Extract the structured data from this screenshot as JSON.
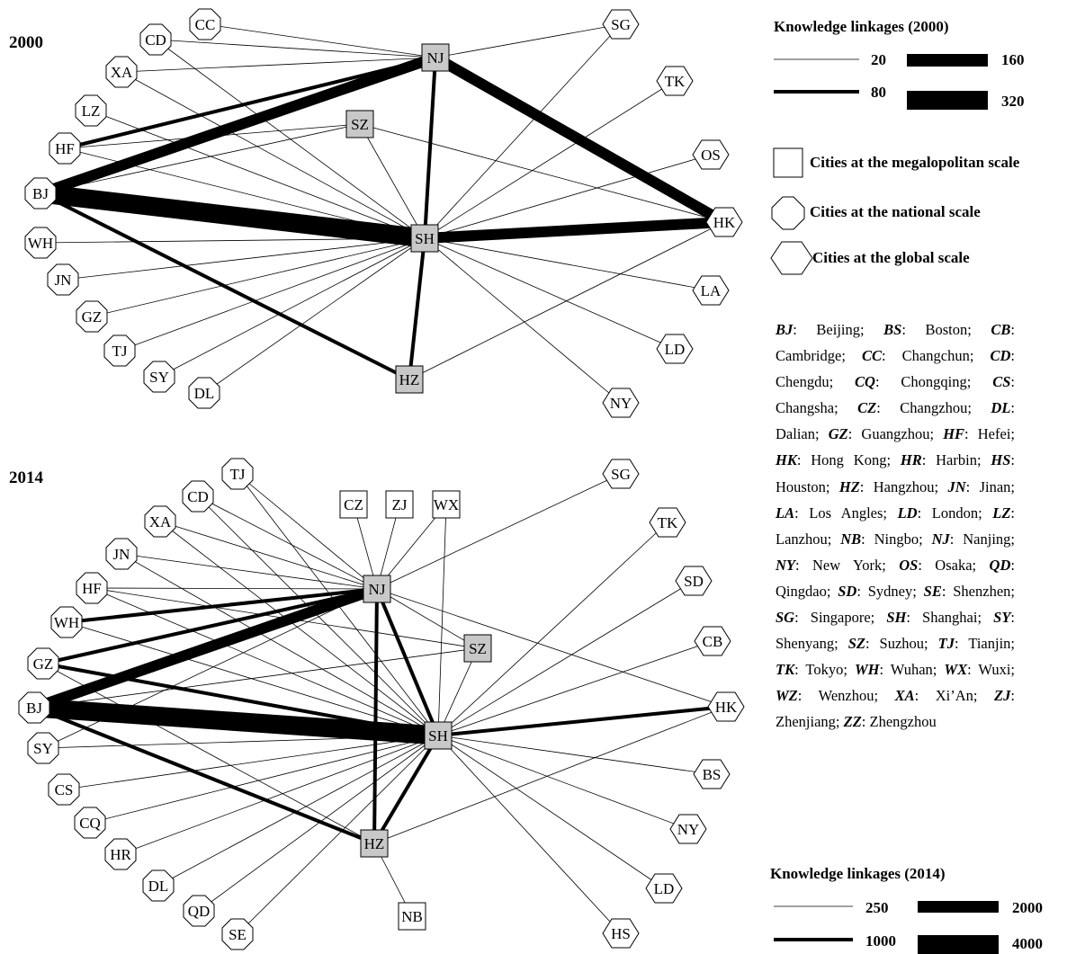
{
  "panels": [
    {
      "year_label": "2000",
      "cities": {
        "NJ": "megalopolitan",
        "SZ": "megalopolitan",
        "SH": "megalopolitan",
        "HZ": "megalopolitan",
        "CC": "national",
        "CD": "national",
        "XA": "national",
        "LZ": "national",
        "HF": "national",
        "BJ": "national",
        "WH": "national",
        "JN": "national",
        "GZ": "national",
        "TJ": "national",
        "SY": "national",
        "DL": "national",
        "SG": "global",
        "TK": "global",
        "OS": "global",
        "HK": "global",
        "LA": "global",
        "LD": "global",
        "NY": "global"
      },
      "links": [
        [
          "BJ",
          "SH",
          320
        ],
        [
          "BJ",
          "NJ",
          160
        ],
        [
          "NJ",
          "HK",
          160
        ],
        [
          "SH",
          "HK",
          160
        ],
        [
          "BJ",
          "HZ",
          80
        ],
        [
          "HF",
          "NJ",
          80
        ],
        [
          "NJ",
          "SH",
          80
        ],
        [
          "SH",
          "HZ",
          80
        ],
        [
          "CC",
          "NJ",
          20
        ],
        [
          "CD",
          "NJ",
          20
        ],
        [
          "XA",
          "NJ",
          20
        ],
        [
          "BJ",
          "SZ",
          20
        ],
        [
          "HF",
          "SZ",
          20
        ],
        [
          "SZ",
          "SH",
          20
        ],
        [
          "SZ",
          "HK",
          20
        ],
        [
          "CD",
          "SH",
          20
        ],
        [
          "XA",
          "SH",
          20
        ],
        [
          "LZ",
          "SH",
          20
        ],
        [
          "HF",
          "SH",
          20
        ],
        [
          "WH",
          "SH",
          20
        ],
        [
          "JN",
          "SH",
          20
        ],
        [
          "GZ",
          "SH",
          20
        ],
        [
          "TJ",
          "SH",
          20
        ],
        [
          "SY",
          "SH",
          20
        ],
        [
          "DL",
          "SH",
          20
        ],
        [
          "SG",
          "NJ",
          20
        ],
        [
          "SG",
          "SH",
          20
        ],
        [
          "TK",
          "SH",
          20
        ],
        [
          "OS",
          "SH",
          20
        ],
        [
          "LA",
          "SH",
          20
        ],
        [
          "LD",
          "SH",
          20
        ],
        [
          "NY",
          "SH",
          20
        ],
        [
          "HZ",
          "HK",
          20
        ]
      ]
    },
    {
      "year_label": "2014",
      "cities": {
        "NJ": "megalopolitan",
        "SZ": "megalopolitan",
        "SH": "megalopolitan",
        "HZ": "megalopolitan",
        "CZ": "megalopolitan",
        "ZJ": "megalopolitan",
        "WX": "megalopolitan",
        "NB": "megalopolitan",
        "TJ": "national",
        "CD": "national",
        "XA": "national",
        "JN": "national",
        "HF": "national",
        "WH": "national",
        "GZ": "national",
        "BJ": "national",
        "SY": "national",
        "CS": "national",
        "CQ": "national",
        "HR": "national",
        "DL": "national",
        "QD": "national",
        "SE": "national",
        "SG": "global",
        "TK": "global",
        "SD": "global",
        "CB": "global",
        "HK": "global",
        "BS": "global",
        "NY": "global",
        "LD": "global",
        "HS": "global"
      },
      "links": [
        [
          "BJ",
          "SH",
          4000
        ],
        [
          "BJ",
          "NJ",
          2000
        ],
        [
          "BJ",
          "HZ",
          1000
        ],
        [
          "NJ",
          "SH",
          1000
        ],
        [
          "SH",
          "HZ",
          1000
        ],
        [
          "SH",
          "HK",
          1000
        ],
        [
          "GZ",
          "SH",
          1000
        ],
        [
          "GZ",
          "NJ",
          1000
        ],
        [
          "NJ",
          "HZ",
          1000
        ],
        [
          "WH",
          "NJ",
          1000
        ],
        [
          "TJ",
          "NJ",
          250
        ],
        [
          "TJ",
          "SH",
          250
        ],
        [
          "CD",
          "NJ",
          250
        ],
        [
          "CD",
          "SH",
          250
        ],
        [
          "XA",
          "NJ",
          250
        ],
        [
          "XA",
          "SH",
          250
        ],
        [
          "JN",
          "NJ",
          250
        ],
        [
          "JN",
          "SH",
          250
        ],
        [
          "HF",
          "NJ",
          250
        ],
        [
          "HF",
          "SH",
          250
        ],
        [
          "HF",
          "SZ",
          250
        ],
        [
          "WH",
          "SH",
          250
        ],
        [
          "BJ",
          "SZ",
          250
        ],
        [
          "GZ",
          "HZ",
          250
        ],
        [
          "SY",
          "NJ",
          250
        ],
        [
          "SY",
          "SH",
          250
        ],
        [
          "CS",
          "SH",
          250
        ],
        [
          "CQ",
          "SH",
          250
        ],
        [
          "HR",
          "SH",
          250
        ],
        [
          "DL",
          "SH",
          250
        ],
        [
          "QD",
          "SH",
          250
        ],
        [
          "SE",
          "SH",
          250
        ],
        [
          "CZ",
          "NJ",
          250
        ],
        [
          "ZJ",
          "NJ",
          250
        ],
        [
          "WX",
          "NJ",
          250
        ],
        [
          "WX",
          "SH",
          250
        ],
        [
          "NJ",
          "SG",
          250
        ],
        [
          "NJ",
          "HK",
          250
        ],
        [
          "NJ",
          "SZ",
          250
        ],
        [
          "SZ",
          "SH",
          250
        ],
        [
          "SH",
          "TK",
          250
        ],
        [
          "SH",
          "SD",
          250
        ],
        [
          "SH",
          "CB",
          250
        ],
        [
          "SH",
          "BS",
          250
        ],
        [
          "SH",
          "NY",
          250
        ],
        [
          "SH",
          "LD",
          250
        ],
        [
          "SH",
          "HS",
          250
        ],
        [
          "HZ",
          "NB",
          250
        ],
        [
          "HZ",
          "HK",
          250
        ]
      ]
    }
  ],
  "legend_2000": {
    "title": "Knowledge linkages (2000)",
    "entries": [
      {
        "label": "20",
        "value": 20
      },
      {
        "label": "80",
        "value": 80
      },
      {
        "label": "160",
        "value": 160
      },
      {
        "label": "320",
        "value": 320
      }
    ]
  },
  "scale_legend": {
    "megalopolitan": "Cities at the megalopolitan scale",
    "national": "Cities at the national scale",
    "global": "Cities at the global scale"
  },
  "abbreviations": [
    [
      "BJ",
      "Beijing"
    ],
    [
      "BS",
      "Boston"
    ],
    [
      "CB",
      "Cambridge"
    ],
    [
      "CC",
      "Changchun"
    ],
    [
      "CD",
      "Chengdu"
    ],
    [
      "CQ",
      "Chongqing"
    ],
    [
      "CS",
      "Changsha"
    ],
    [
      "CZ",
      "Changzhou"
    ],
    [
      "DL",
      "Dalian"
    ],
    [
      "GZ",
      "Guangzhou"
    ],
    [
      "HF",
      "Hefei"
    ],
    [
      "HK",
      "Hong Kong"
    ],
    [
      "HR",
      "Harbin"
    ],
    [
      "HS",
      "Houston"
    ],
    [
      "HZ",
      "Hangzhou"
    ],
    [
      "JN",
      "Jinan"
    ],
    [
      "LA",
      "Los Angles"
    ],
    [
      "LD",
      "London"
    ],
    [
      "LZ",
      "Lanzhou"
    ],
    [
      "NB",
      "Ningbo"
    ],
    [
      "NJ",
      "Nanjing"
    ],
    [
      "NY",
      "New York"
    ],
    [
      "OS",
      "Osaka"
    ],
    [
      "QD",
      "Qingdao"
    ],
    [
      "SD",
      "Sydney"
    ],
    [
      "SE",
      "Shenzhen"
    ],
    [
      "SG",
      "Singapore"
    ],
    [
      "SH",
      "Shanghai"
    ],
    [
      "SY",
      "Shenyang"
    ],
    [
      "SZ",
      "Suzhou"
    ],
    [
      "TJ",
      "Tianjin"
    ],
    [
      "TK",
      "Tokyo"
    ],
    [
      "WH",
      "Wuhan"
    ],
    [
      "WX",
      "Wuxi"
    ],
    [
      "WZ",
      "Wenzhou"
    ],
    [
      "XA",
      "Xi’An"
    ],
    [
      "ZJ",
      "Zhenjiang"
    ],
    [
      "ZZ",
      "Zhengzhou"
    ]
  ],
  "legend_2014": {
    "title": "Knowledge linkages (2014)",
    "entries": [
      {
        "label": "250",
        "value": 250
      },
      {
        "label": "1000",
        "value": 1000
      },
      {
        "label": "2000",
        "value": 2000
      },
      {
        "label": "4000",
        "value": 4000
      }
    ]
  }
}
